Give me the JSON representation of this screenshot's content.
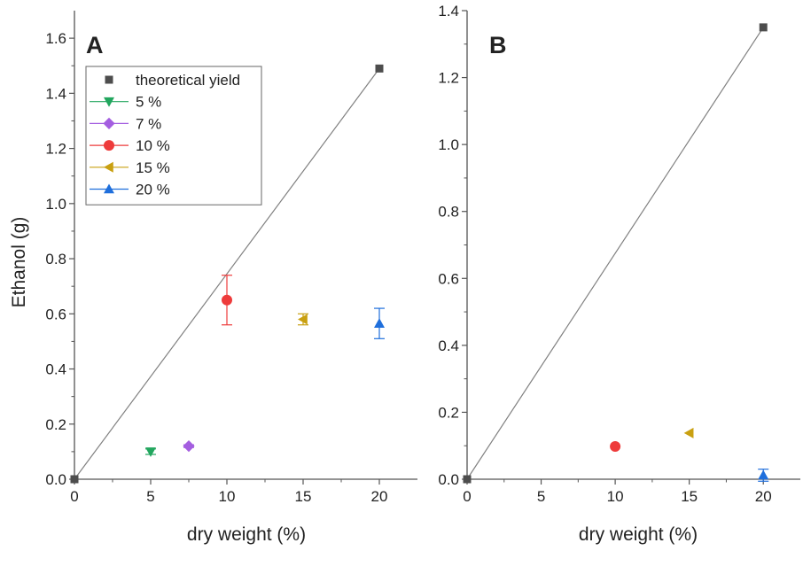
{
  "chart_data": [
    {
      "type": "scatter",
      "panel_label": "A",
      "xlabel": "dry weight (%)",
      "ylabel": "Ethanol (g)",
      "xlim": [
        0,
        22.5
      ],
      "ylim": [
        0,
        1.7
      ],
      "xticks": [
        0,
        5,
        10,
        15,
        20
      ],
      "yticks": [
        0.0,
        0.2,
        0.4,
        0.6,
        0.8,
        1.0,
        1.2,
        1.4,
        1.6
      ],
      "tick_labels_x": [
        "0",
        "5",
        "10",
        "15",
        "20"
      ],
      "tick_labels_y": [
        "0.0",
        "0.2",
        "0.4",
        "0.6",
        "0.8",
        "1.0",
        "1.2",
        "1.4",
        "1.6"
      ],
      "reference_line": {
        "from": [
          0,
          0
        ],
        "to": [
          20,
          1.49
        ],
        "color": "#808080"
      },
      "legend_position": "top-left",
      "series": [
        {
          "name": "theoretical yield",
          "marker": "square",
          "color": "#4d4d4d",
          "points": [
            {
              "x": 0,
              "y": 0
            },
            {
              "x": 20,
              "y": 1.49
            }
          ]
        },
        {
          "name": "5 %",
          "marker": "triangle-down",
          "color": "#22a65e",
          "points": [
            {
              "x": 5,
              "y": 0.1,
              "err": 0.01
            }
          ]
        },
        {
          "name": "7 %",
          "marker": "diamond",
          "color": "#a45ee0",
          "points": [
            {
              "x": 7.5,
              "y": 0.12,
              "err": 0.005
            }
          ]
        },
        {
          "name": "10 %",
          "marker": "circle",
          "color": "#ee3b3b",
          "points": [
            {
              "x": 10,
              "y": 0.65,
              "err": 0.09
            }
          ]
        },
        {
          "name": "15 %",
          "marker": "triangle-left",
          "color": "#c9a011",
          "points": [
            {
              "x": 15,
              "y": 0.58,
              "err": 0.02
            }
          ]
        },
        {
          "name": "20 %",
          "marker": "triangle-up",
          "color": "#1f6fdc",
          "points": [
            {
              "x": 20,
              "y": 0.565,
              "err": 0.055
            }
          ]
        }
      ]
    },
    {
      "type": "scatter",
      "panel_label": "B",
      "xlabel": "dry weight (%)",
      "ylabel": "",
      "xlim": [
        0,
        22.5
      ],
      "ylim": [
        0,
        1.4
      ],
      "xticks": [
        0,
        5,
        10,
        15,
        20
      ],
      "yticks": [
        0.0,
        0.2,
        0.4,
        0.6,
        0.8,
        1.0,
        1.2,
        1.4
      ],
      "tick_labels_x": [
        "0",
        "5",
        "10",
        "15",
        "20"
      ],
      "tick_labels_y": [
        "0.0",
        "0.2",
        "0.4",
        "0.6",
        "0.8",
        "1.0",
        "1.2",
        "1.4"
      ],
      "reference_line": {
        "from": [
          0,
          0
        ],
        "to": [
          20,
          1.35
        ],
        "color": "#808080"
      },
      "series": [
        {
          "name": "theoretical yield",
          "marker": "square",
          "color": "#4d4d4d",
          "points": [
            {
              "x": 0,
              "y": 0
            },
            {
              "x": 20,
              "y": 1.35
            }
          ]
        },
        {
          "name": "10 %",
          "marker": "circle",
          "color": "#ee3b3b",
          "points": [
            {
              "x": 10,
              "y": 0.098,
              "err": 0
            }
          ]
        },
        {
          "name": "15 %",
          "marker": "triangle-left",
          "color": "#c9a011",
          "points": [
            {
              "x": 15,
              "y": 0.138,
              "err": 0
            }
          ]
        },
        {
          "name": "20 %",
          "marker": "triangle-up",
          "color": "#1f6fdc",
          "points": [
            {
              "x": 20,
              "y": 0.012,
              "err": 0.018
            }
          ]
        }
      ]
    }
  ]
}
